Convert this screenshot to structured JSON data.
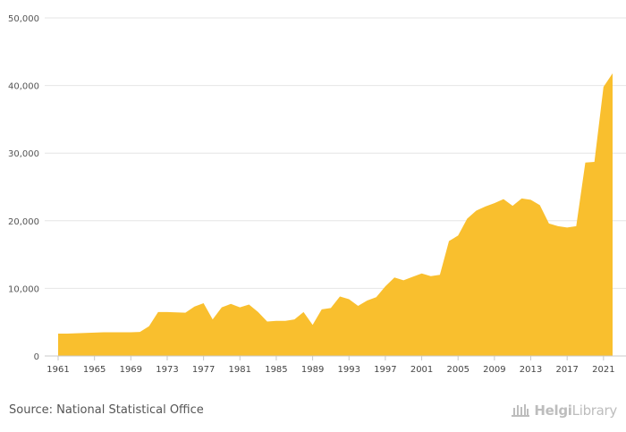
{
  "chart_data": {
    "type": "area",
    "title": "",
    "xlabel": "",
    "ylabel": "",
    "ylim": [
      0,
      50000
    ],
    "yticks": [
      0,
      10000,
      20000,
      30000,
      40000,
      50000
    ],
    "ytick_labels": [
      "0",
      "10,000",
      "20,000",
      "30,000",
      "40,000",
      "50,000"
    ],
    "xticks": [
      "1961",
      "1965",
      "1969",
      "1973",
      "1977",
      "1981",
      "1985",
      "1989",
      "1993",
      "1997",
      "2001",
      "2005",
      "2009",
      "2013",
      "2017",
      "2021"
    ],
    "grid": true,
    "legend": "none",
    "fill_color": "#f9bf2e",
    "x": [
      1961,
      1962,
      1963,
      1964,
      1965,
      1966,
      1967,
      1968,
      1969,
      1970,
      1971,
      1972,
      1973,
      1974,
      1975,
      1976,
      1977,
      1978,
      1979,
      1980,
      1981,
      1982,
      1983,
      1984,
      1985,
      1986,
      1987,
      1988,
      1989,
      1990,
      1991,
      1992,
      1993,
      1994,
      1995,
      1996,
      1997,
      1998,
      1999,
      2000,
      2001,
      2002,
      2003,
      2004,
      2005,
      2006,
      2007,
      2008,
      2009,
      2010,
      2011,
      2012,
      2013,
      2014,
      2015,
      2016,
      2017,
      2018,
      2019,
      2020,
      2021,
      2022
    ],
    "values": [
      3300,
      3300,
      3350,
      3400,
      3450,
      3500,
      3500,
      3500,
      3500,
      3550,
      4400,
      6500,
      6500,
      6450,
      6400,
      7300,
      7800,
      5400,
      7200,
      7700,
      7200,
      7600,
      6500,
      5100,
      5200,
      5200,
      5400,
      6500,
      4600,
      6900,
      7100,
      8800,
      8400,
      7400,
      8200,
      8700,
      10300,
      11600,
      11200,
      11700,
      12200,
      11800,
      12000,
      17000,
      17800,
      20300,
      21500,
      22100,
      22600,
      23200,
      22200,
      23300,
      23100,
      22300,
      19600,
      19200,
      19000,
      19200,
      28600,
      28700,
      39800,
      41800
    ]
  },
  "footer": {
    "source": "Source: National Statistical Office",
    "logo_text_bold": "Helgi",
    "logo_text": "Library"
  }
}
